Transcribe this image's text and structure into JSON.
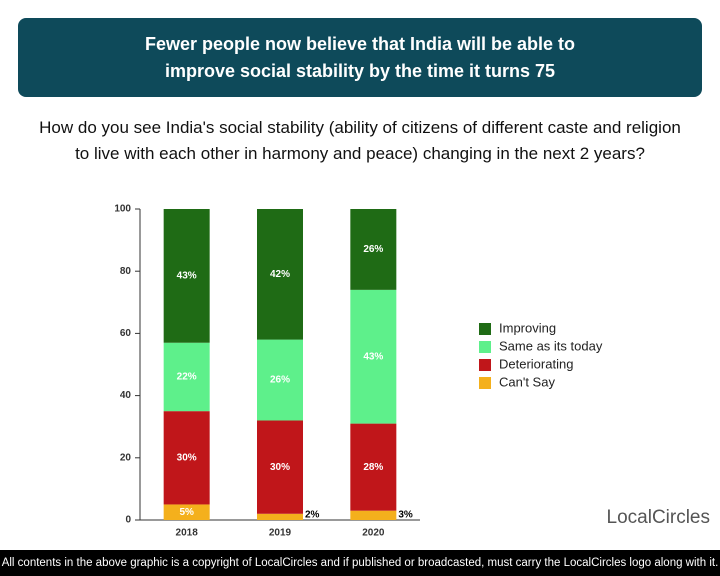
{
  "header": {
    "title": "Fewer people now believe that India will be able to improve social stability by the time it turns 75"
  },
  "question": "How do you see India's social stability (ability of citizens of different caste and religion to live with each other in harmony and peace) changing in the next 2 years?",
  "chart_data": {
    "type": "stacked_bar",
    "categories": [
      "2018",
      "2019",
      "2020"
    ],
    "series": [
      {
        "name": "Improving",
        "color": "#1f6b15",
        "values": [
          43,
          42,
          26
        ],
        "value_labels": [
          "43%",
          "42%",
          "26%"
        ]
      },
      {
        "name": "Same as its today",
        "color": "#5ef08b",
        "values": [
          22,
          26,
          43
        ],
        "value_labels": [
          "22%",
          "26%",
          "43%"
        ]
      },
      {
        "name": "Deteriorating",
        "color": "#c0161a",
        "values": [
          30,
          30,
          28
        ],
        "value_labels": [
          "30%",
          "30%",
          "28%"
        ]
      },
      {
        "name": "Can't Say",
        "color": "#f4b01c",
        "values": [
          5,
          2,
          3
        ],
        "value_labels": [
          "5%",
          "2%",
          "3%"
        ]
      }
    ],
    "ylim": [
      0,
      100
    ],
    "yticks": [
      0,
      20,
      40,
      60,
      80,
      100
    ],
    "legend": "right"
  },
  "logo": "LocalCircles",
  "footer": "All contents in the above graphic is a copyright of LocalCircles and if published or broadcasted, must carry the LocalCircles logo along with it."
}
